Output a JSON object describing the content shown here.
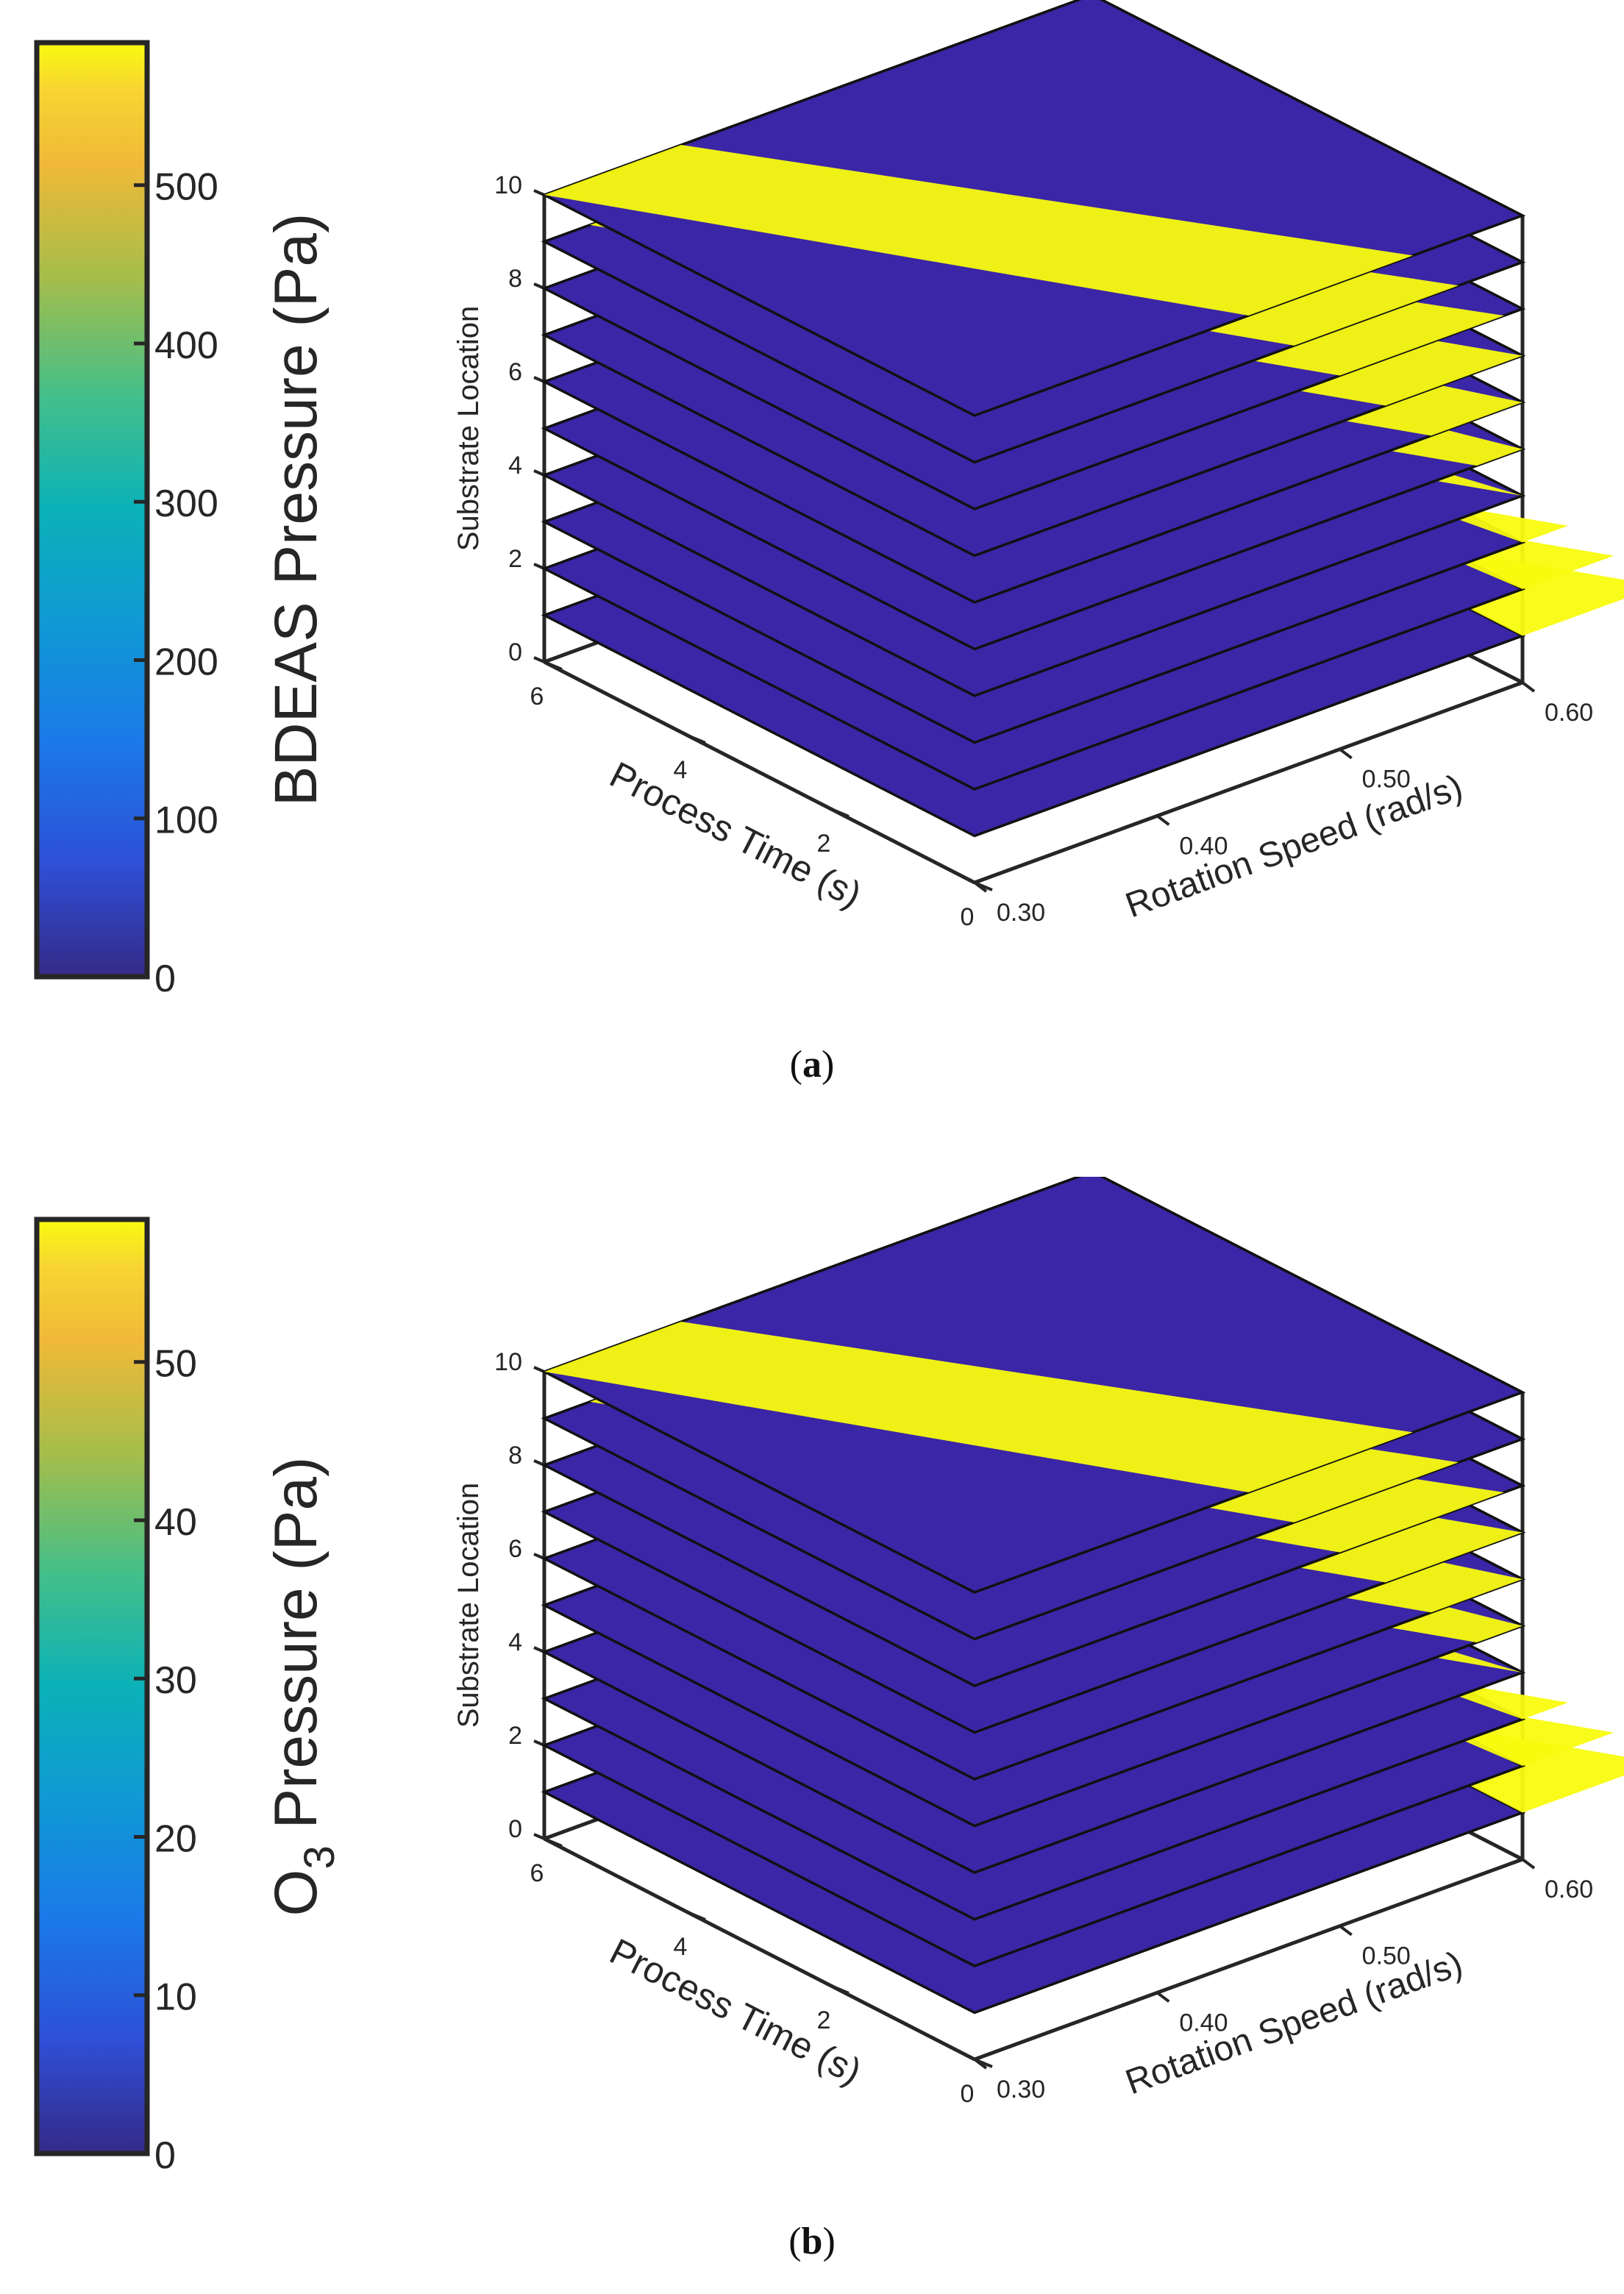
{
  "chart_data": [
    {
      "type": "heatmap",
      "panel_label": "a",
      "colorbar": {
        "label": "BDEAS Pressure (Pa)",
        "ticks": [
          0,
          100,
          200,
          300,
          400,
          500
        ],
        "range": [
          0,
          590
        ],
        "colormap": "parula"
      },
      "axes": {
        "x": {
          "label": "Rotation Speed (rad/s)",
          "ticks": [
            "0.30",
            "0.40",
            "0.50",
            "0.60"
          ],
          "range": [
            0.3,
            0.6
          ]
        },
        "y": {
          "label": "Process Time (s)",
          "ticks": [
            "0",
            "2",
            "4",
            "6"
          ],
          "range": [
            0,
            6
          ]
        },
        "z": {
          "label": "Substrate Location",
          "ticks": [
            "0",
            "2",
            "4",
            "6",
            "8",
            "10"
          ],
          "range": [
            0,
            10
          ]
        }
      },
      "slices": {
        "count": 10,
        "locations": [
          1,
          2,
          3,
          4,
          5,
          6,
          7,
          8,
          9,
          10
        ]
      }
    },
    {
      "type": "heatmap",
      "panel_label": "b",
      "colorbar": {
        "label": "O",
        "label_subscript": "3",
        "label_rest": " Pressure (Pa)",
        "ticks": [
          0,
          10,
          20,
          30,
          40,
          50
        ],
        "range": [
          0,
          59
        ],
        "colormap": "parula"
      },
      "axes": {
        "x": {
          "label": "Rotation Speed (rad/s)",
          "ticks": [
            "0.30",
            "0.40",
            "0.50",
            "0.60"
          ],
          "range": [
            0.3,
            0.6
          ]
        },
        "y": {
          "label": "Process Time (s)",
          "ticks": [
            "0",
            "2",
            "4",
            "6"
          ],
          "range": [
            0,
            6
          ]
        },
        "z": {
          "label": "Substrate Location",
          "ticks": [
            "0",
            "2",
            "4",
            "6",
            "8",
            "10"
          ],
          "range": [
            0,
            10
          ]
        }
      },
      "slices": {
        "count": 10,
        "locations": [
          1,
          2,
          3,
          4,
          5,
          6,
          7,
          8,
          9,
          10
        ]
      }
    }
  ],
  "colors": {
    "low": "#3a26a6",
    "high": "#f9fb0e",
    "frame": "#262626"
  }
}
